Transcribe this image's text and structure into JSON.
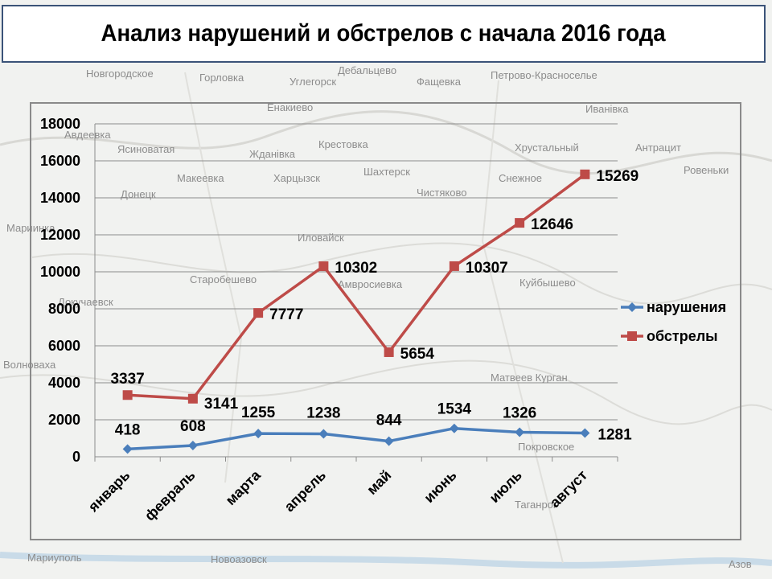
{
  "title": "Анализ нарушений и обстрелов с начала 2016 года",
  "map_labels": [
    {
      "name": "Горловка"
    },
    {
      "name": "Новгородское"
    },
    {
      "name": "Углегорск"
    },
    {
      "name": "Дебальцево"
    },
    {
      "name": "Фащевка"
    },
    {
      "name": "Петрово-Красноселье"
    },
    {
      "name": "Енакиево"
    },
    {
      "name": "Иванівка"
    },
    {
      "name": "Авдеевка"
    },
    {
      "name": "Ясиноватая"
    },
    {
      "name": "Жданівка"
    },
    {
      "name": "Крестовка"
    },
    {
      "name": "Хрустальный"
    },
    {
      "name": "Антрацит"
    },
    {
      "name": "Макеевка"
    },
    {
      "name": "Харцызск"
    },
    {
      "name": "Шахтерск"
    },
    {
      "name": "Снежное"
    },
    {
      "name": "Ровеньки"
    },
    {
      "name": "Донецк"
    },
    {
      "name": "Чистяково"
    },
    {
      "name": "Мариинка"
    },
    {
      "name": "Иловайск"
    },
    {
      "name": "Амвросиевка"
    },
    {
      "name": "Куйбышево"
    },
    {
      "name": "Докучаевск"
    },
    {
      "name": "Старобешево"
    },
    {
      "name": "Волноваха"
    },
    {
      "name": "Матвеев Курган"
    },
    {
      "name": "Покровское"
    },
    {
      "name": "Таганрог"
    },
    {
      "name": "Мариуполь"
    },
    {
      "name": "Новоазовск"
    },
    {
      "name": "Азов"
    }
  ],
  "chart_data": {
    "type": "line",
    "categories": [
      "январь",
      "февраль",
      "марта",
      "апрель",
      "май",
      "июнь",
      "июль",
      "август"
    ],
    "ylim": [
      0,
      18000
    ],
    "yticks": [
      "0",
      "2000",
      "4000",
      "6000",
      "8000",
      "10000",
      "12000",
      "14000",
      "16000",
      "18000"
    ],
    "grid": true,
    "legend_position": "right",
    "series": [
      {
        "name": "нарушения",
        "color": "#4a7ebb",
        "marker": "diamond",
        "values": [
          418,
          608,
          1255,
          1238,
          844,
          1534,
          1326,
          1281
        ]
      },
      {
        "name": "обстрелы",
        "color": "#be4b48",
        "marker": "square",
        "values": [
          3337,
          3141,
          7777,
          10302,
          5654,
          10307,
          12646,
          15269
        ]
      }
    ]
  }
}
